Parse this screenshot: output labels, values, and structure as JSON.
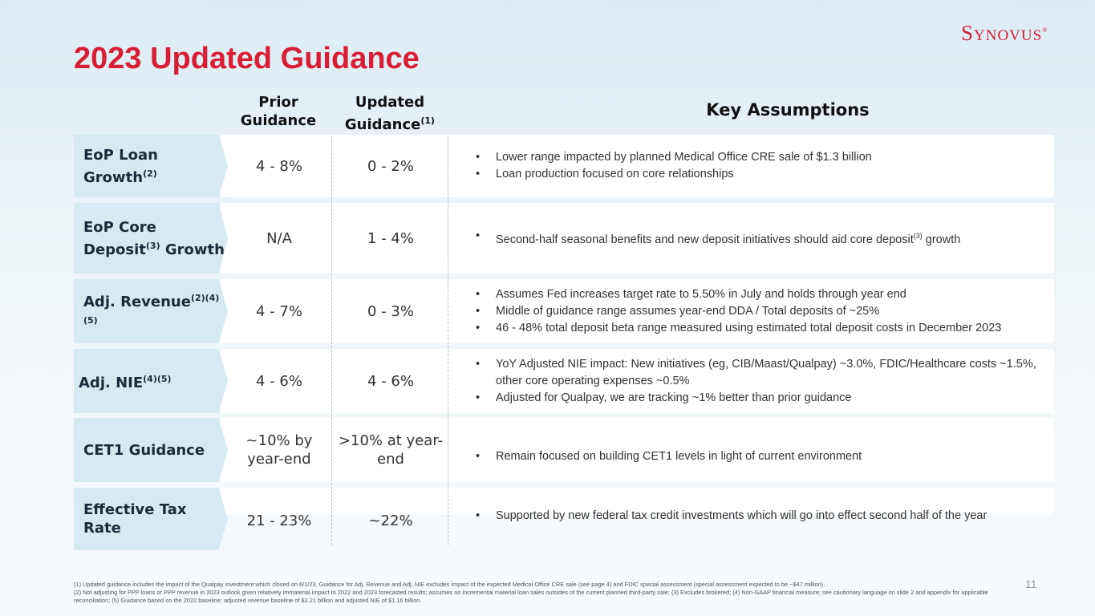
{
  "brand": {
    "logo_text": "Synovus",
    "logo_mark": "®",
    "accent": "#d71e35",
    "chevron_color": "#d6ebf1"
  },
  "title": "2023 Updated Guidance",
  "columns": {
    "prior": "Prior Guidance",
    "updated": "Updated Guidance",
    "updated_sup": "(1)",
    "key": "Key Assumptions"
  },
  "rows": [
    {
      "label": "EoP Loan Growth",
      "label_sup": "(2)",
      "prior": "4 - 8%",
      "updated": "0 - 2%",
      "bullets": [
        "Lower range impacted by planned Medical Office CRE sale of $1.3 billion",
        "Loan production focused on core relationships"
      ]
    },
    {
      "label_a": "EoP Core Deposit",
      "label_sup": "(3)",
      "label_b": " Growth",
      "prior": "N/A",
      "updated": "1 - 4%",
      "bullet_a": "Second-half seasonal benefits and new deposit initiatives should aid core deposit",
      "bullet_sup": "(3)",
      "bullet_b": " growth"
    },
    {
      "label": "Adj. Revenue",
      "label_sup": "(2)(4)(5)",
      "prior": "4 - 7%",
      "updated": "0 - 3%",
      "bullets": [
        "Assumes Fed increases target rate to 5.50% in July and holds through year end",
        "Middle of guidance range assumes year-end DDA / Total deposits of ~25%",
        "46 - 48% total deposit beta range measured using estimated total deposit costs in December 2023"
      ]
    },
    {
      "label": "Adj. NIE",
      "label_sup": "(4)(5)",
      "prior": "4 - 6%",
      "updated": "4 - 6%",
      "bullets": [
        "YoY Adjusted NIE impact: New initiatives (eg, CIB/Maast/Qualpay) ~3.0%, FDIC/Healthcare costs ~1.5%, other core operating expenses ~0.5%",
        "Adjusted for Qualpay, we are tracking ~1% better than prior guidance"
      ]
    },
    {
      "label": "CET1 Guidance",
      "prior": "~10% by year-end",
      "updated": ">10% at year-end",
      "bullets": [
        "Remain focused on building CET1 levels in light of current environment"
      ]
    },
    {
      "label": "Effective Tax Rate",
      "prior": "21 - 23%",
      "updated": "~22%",
      "bullets": [
        "Supported by new federal tax credit investments which will go into effect second half of the year"
      ]
    }
  ],
  "footnotes": [
    "(1) Updated guidance includes the impact of the Qualpay investment which closed on 6/1/23. Guidance for Adj. Revenue and Adj. NIE excludes impact of the expected Medical Office CRE sale (see page 4) and FDIC special assessment (special assessment expected to be ~$47 million).",
    "(2) Not adjusting for PPP loans or PPP revenue in 2023 outlook given relatively immaterial impact to 2022 and 2023 forecasted results; assumes no incremental material loan sales outsides of the current planned third-party sale; (3) Excludes brokered; (4) Non-GAAP financial measure; see cautionary language on slide 2 and appendix for applicable reconciliation; (5) Guidance based on the 2022 baseline: adjusted revenue baseline of $2.21 billion and adjusted NIE of $1.16 billion."
  ],
  "page_number": "11"
}
